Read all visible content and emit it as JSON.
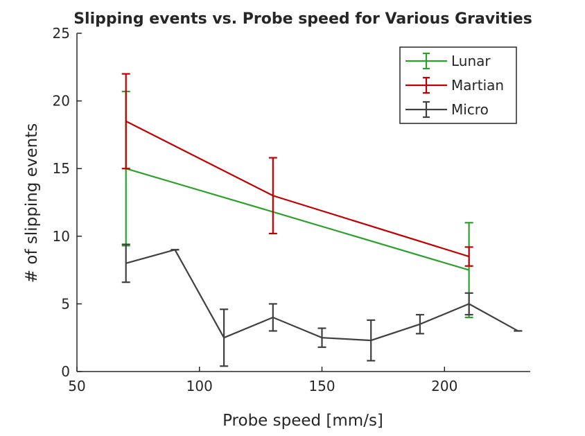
{
  "chart_data": {
    "type": "line",
    "title": "Slipping events vs. Probe speed for Various Gravities",
    "xlabel": "Probe speed [mm/s]",
    "ylabel": "# of slipping events",
    "xlim": [
      50,
      235
    ],
    "ylim": [
      0,
      25
    ],
    "xticks": [
      50,
      100,
      150,
      200
    ],
    "yticks": [
      0,
      5,
      10,
      15,
      20,
      25
    ],
    "grid": false,
    "legend_position": "top-right",
    "series": [
      {
        "name": "Lunar",
        "color": "#2ca02c",
        "points": [
          {
            "x": 70,
            "y": 15.0,
            "err": 5.7
          },
          {
            "x": 130,
            "y": 11.8,
            "err": null
          },
          {
            "x": 210,
            "y": 7.5,
            "err": 3.5
          }
        ]
      },
      {
        "name": "Martian",
        "color": "#c00000",
        "points": [
          {
            "x": 70,
            "y": 18.5,
            "err": 3.5
          },
          {
            "x": 130,
            "y": 13.0,
            "err": 2.8
          },
          {
            "x": 210,
            "y": 8.5,
            "err": 0.7
          }
        ]
      },
      {
        "name": "Micro",
        "color": "#404040",
        "points": [
          {
            "x": 70,
            "y": 8.0,
            "err": 1.4
          },
          {
            "x": 90,
            "y": 9.0,
            "err": 0.0
          },
          {
            "x": 110,
            "y": 2.5,
            "err": 2.1
          },
          {
            "x": 130,
            "y": 4.0,
            "err": 1.0
          },
          {
            "x": 150,
            "y": 2.5,
            "err": 0.7
          },
          {
            "x": 170,
            "y": 2.3,
            "err": 1.5
          },
          {
            "x": 190,
            "y": 3.5,
            "err": 0.7
          },
          {
            "x": 210,
            "y": 5.0,
            "err": 0.8
          },
          {
            "x": 230,
            "y": 3.0,
            "err": 0.0
          }
        ]
      }
    ]
  }
}
